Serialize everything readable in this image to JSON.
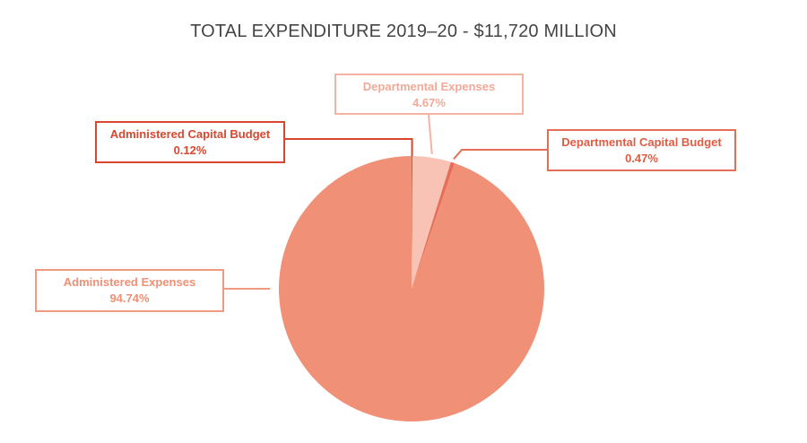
{
  "chart_data": {
    "type": "pie",
    "title": "TOTAL EXPENDITURE 2019–20 - $11,720 MILLION",
    "slices": [
      {
        "label": "Administered Capital Budget",
        "value": 0.12,
        "value_label": "0.12%",
        "color": "#e0533a",
        "callout_border": "#d9472f",
        "callout_text": "#d9472f"
      },
      {
        "label": "Departmental Expenses",
        "value": 4.67,
        "value_label": "4.67%",
        "color": "#f8c3b5",
        "callout_border": "#f5b3a3",
        "callout_text": "#f2a998"
      },
      {
        "label": "Departmental Capital Budget",
        "value": 0.47,
        "value_label": "0.47%",
        "color": "#e56e58",
        "callout_border": "#e56e58",
        "callout_text": "#e05c44"
      },
      {
        "label": "Administered Expenses",
        "value": 94.74,
        "value_label": "94.74%",
        "color": "#f09076",
        "callout_border": "#f09a82",
        "callout_text": "#f09076"
      }
    ]
  }
}
